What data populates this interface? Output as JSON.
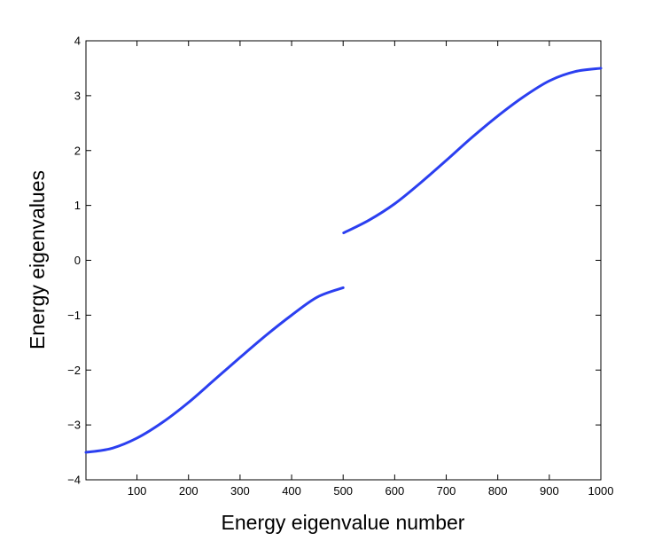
{
  "chart_data": {
    "type": "line",
    "title": "",
    "xlabel": "Energy eigenvalue number",
    "ylabel": "Energy eigenvalues",
    "xlim": [
      1,
      1000
    ],
    "ylim": [
      -4,
      4
    ],
    "xticks": [
      100,
      200,
      300,
      400,
      500,
      600,
      700,
      800,
      900,
      1000
    ],
    "yticks": [
      -4,
      -3,
      -2,
      -1,
      0,
      1,
      2,
      3,
      4
    ],
    "xtick_labels": [
      "100",
      "200",
      "300",
      "400",
      "500",
      "600",
      "700",
      "800",
      "900",
      "1000"
    ],
    "ytick_labels": [
      "−4",
      "−3",
      "−2",
      "−1",
      "0",
      "1",
      "2",
      "3",
      "4"
    ],
    "grid": false,
    "legend": "none",
    "line_color": "#2b3ff0",
    "series": [
      {
        "segments": [
          {
            "x": [
              1,
              50,
              100,
              150,
              200,
              250,
              300,
              350,
              400,
              450,
              500
            ],
            "y": [
              -3.5,
              -3.43,
              -3.24,
              -2.95,
              -2.59,
              -2.18,
              -1.77,
              -1.37,
              -1.0,
              -0.67,
              -0.5
            ]
          },
          {
            "x": [
              501,
              550,
              600,
              650,
              700,
              750,
              800,
              850,
              900,
              950,
              1000
            ],
            "y": [
              0.5,
              0.73,
              1.03,
              1.41,
              1.82,
              2.24,
              2.63,
              2.98,
              3.27,
              3.44,
              3.5
            ]
          }
        ]
      }
    ]
  }
}
